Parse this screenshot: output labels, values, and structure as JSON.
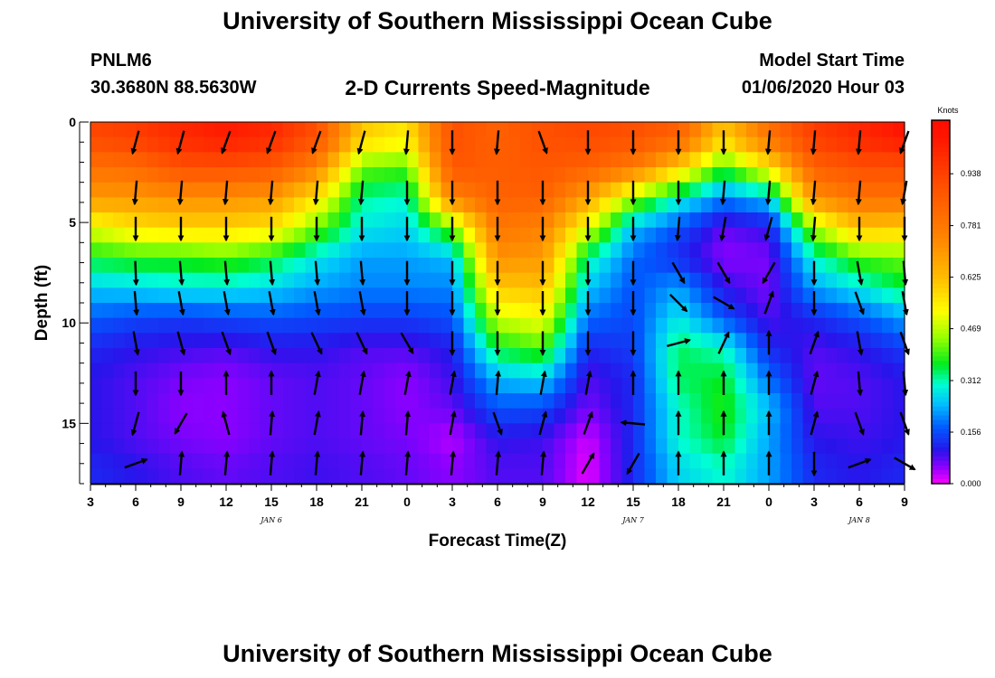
{
  "header": {
    "title": "University of Southern Mississippi Ocean Cube",
    "station_id": "PNLM6",
    "coordinates": "30.3680N 88.5630W",
    "subtitle": "2-D Currents Speed-Magnitude",
    "model_start_label": "Model Start Time",
    "model_start_value": "01/06/2020 Hour 03"
  },
  "footer": {
    "title": "University of Southern Mississippi Ocean Cube"
  },
  "chart_data": {
    "type": "heatmap",
    "title": "2-D Currents Speed-Magnitude",
    "xlabel": "Forecast Time(Z)",
    "ylabel": "Depth (ft)",
    "x_tick_labels": [
      "3",
      "6",
      "9",
      "12",
      "15",
      "18",
      "21",
      "0",
      "3",
      "6",
      "9",
      "12",
      "15",
      "18",
      "21",
      "0",
      "3",
      "6",
      "9"
    ],
    "date_labels": [
      {
        "label": "JAN 6",
        "at_hour": 12
      },
      {
        "label": "JAN 7",
        "at_hour": 36
      },
      {
        "label": "JAN 8",
        "at_hour": 51
      }
    ],
    "x_range_hours": [
      0,
      54
    ],
    "y_ticks": [
      0,
      5,
      10,
      15
    ],
    "y_range_ft": [
      0,
      18
    ],
    "colorbar": {
      "unit": "Knots",
      "range": [
        0.0,
        1.1
      ],
      "tick_labels": [
        "0.000",
        "0.156",
        "0.312",
        "0.469",
        "0.625",
        "0.781",
        "0.938"
      ]
    },
    "depth_levels_ft": [
      0.75,
      2.25,
      3.75,
      5.25,
      6.75,
      8.25,
      9.75,
      11.25,
      12.75,
      14.25,
      15.75,
      17.25
    ],
    "time_hours": [
      0,
      3,
      6,
      9,
      12,
      15,
      18,
      21,
      24,
      27,
      30,
      33,
      36,
      39,
      42,
      45,
      48,
      51,
      54
    ],
    "speed_knots": [
      [
        0.92,
        0.95,
        1.0,
        1.03,
        1.0,
        0.9,
        0.6,
        0.55,
        0.9,
        0.85,
        0.9,
        0.92,
        0.9,
        0.85,
        0.6,
        0.8,
        0.95,
        1.0,
        1.05
      ],
      [
        0.8,
        0.82,
        0.9,
        0.9,
        0.88,
        0.75,
        0.42,
        0.4,
        0.88,
        0.86,
        0.88,
        0.85,
        0.78,
        0.6,
        0.38,
        0.55,
        0.85,
        0.9,
        0.9
      ],
      [
        0.7,
        0.7,
        0.72,
        0.72,
        0.7,
        0.56,
        0.32,
        0.3,
        0.75,
        0.85,
        0.85,
        0.68,
        0.45,
        0.3,
        0.2,
        0.25,
        0.72,
        0.8,
        0.8
      ],
      [
        0.5,
        0.56,
        0.58,
        0.58,
        0.56,
        0.42,
        0.28,
        0.26,
        0.42,
        0.78,
        0.75,
        0.5,
        0.24,
        0.16,
        0.07,
        0.1,
        0.45,
        0.62,
        0.6
      ],
      [
        0.36,
        0.38,
        0.38,
        0.4,
        0.36,
        0.28,
        0.22,
        0.22,
        0.24,
        0.72,
        0.7,
        0.32,
        0.18,
        0.12,
        0.05,
        0.06,
        0.3,
        0.4,
        0.42
      ],
      [
        0.25,
        0.26,
        0.28,
        0.28,
        0.26,
        0.22,
        0.2,
        0.2,
        0.2,
        0.6,
        0.62,
        0.25,
        0.16,
        0.22,
        0.1,
        0.06,
        0.22,
        0.28,
        0.35
      ],
      [
        0.17,
        0.15,
        0.14,
        0.15,
        0.16,
        0.15,
        0.14,
        0.14,
        0.16,
        0.48,
        0.52,
        0.18,
        0.15,
        0.28,
        0.16,
        0.08,
        0.12,
        0.16,
        0.22
      ],
      [
        0.12,
        0.1,
        0.09,
        0.08,
        0.1,
        0.1,
        0.08,
        0.08,
        0.11,
        0.36,
        0.4,
        0.12,
        0.14,
        0.34,
        0.3,
        0.12,
        0.08,
        0.1,
        0.14
      ],
      [
        0.1,
        0.08,
        0.06,
        0.05,
        0.07,
        0.08,
        0.07,
        0.05,
        0.09,
        0.24,
        0.26,
        0.08,
        0.12,
        0.34,
        0.36,
        0.18,
        0.07,
        0.08,
        0.1
      ],
      [
        0.1,
        0.08,
        0.05,
        0.05,
        0.07,
        0.08,
        0.07,
        0.05,
        0.07,
        0.16,
        0.15,
        0.06,
        0.12,
        0.3,
        0.38,
        0.24,
        0.08,
        0.08,
        0.1
      ],
      [
        0.1,
        0.08,
        0.06,
        0.05,
        0.07,
        0.08,
        0.07,
        0.06,
        0.03,
        0.1,
        0.09,
        0.02,
        0.12,
        0.3,
        0.36,
        0.22,
        0.1,
        0.09,
        0.1
      ],
      [
        0.12,
        0.1,
        0.08,
        0.07,
        0.08,
        0.09,
        0.08,
        0.07,
        0.05,
        0.08,
        0.08,
        0.01,
        0.12,
        0.26,
        0.3,
        0.22,
        0.12,
        0.1,
        0.12
      ]
    ],
    "arrow_depths_ft": [
      1.0,
      3.5,
      5.3,
      7.5,
      9.0,
      11.0,
      13.0,
      15.0,
      17.0
    ],
    "arrow_columns_hours": [
      3,
      6,
      9,
      12,
      15,
      18,
      21,
      24,
      27,
      30,
      33,
      36,
      39,
      42,
      45,
      48,
      51,
      54
    ],
    "arrow_directions_deg": [
      [
        195,
        195,
        200,
        200,
        200,
        195,
        185,
        180,
        185,
        160,
        180,
        180,
        180,
        180,
        185,
        185,
        185,
        200
      ],
      [
        185,
        185,
        185,
        185,
        185,
        185,
        180,
        180,
        180,
        180,
        180,
        180,
        180,
        185,
        185,
        185,
        185,
        190
      ],
      [
        180,
        180,
        180,
        180,
        180,
        180,
        180,
        180,
        180,
        180,
        180,
        180,
        185,
        190,
        195,
        185,
        180,
        180
      ],
      [
        178,
        175,
        175,
        175,
        175,
        175,
        180,
        180,
        180,
        180,
        180,
        180,
        150,
        150,
        210,
        180,
        170,
        175
      ],
      [
        175,
        170,
        170,
        170,
        170,
        170,
        180,
        180,
        180,
        180,
        180,
        180,
        135,
        120,
        20,
        180,
        160,
        170
      ],
      [
        170,
        165,
        160,
        160,
        155,
        155,
        150,
        180,
        180,
        180,
        180,
        180,
        75,
        25,
        0,
        20,
        170,
        160
      ],
      [
        180,
        180,
        0,
        0,
        10,
        10,
        10,
        10,
        5,
        10,
        10,
        0,
        0,
        0,
        0,
        15,
        175,
        175
      ],
      [
        195,
        210,
        345,
        5,
        10,
        5,
        5,
        10,
        160,
        15,
        20,
        275,
        0,
        0,
        0,
        15,
        160,
        160
      ],
      [
        70,
        5,
        5,
        5,
        5,
        5,
        5,
        5,
        5,
        5,
        30,
        210,
        0,
        0,
        0,
        180,
        70,
        120
      ]
    ]
  }
}
